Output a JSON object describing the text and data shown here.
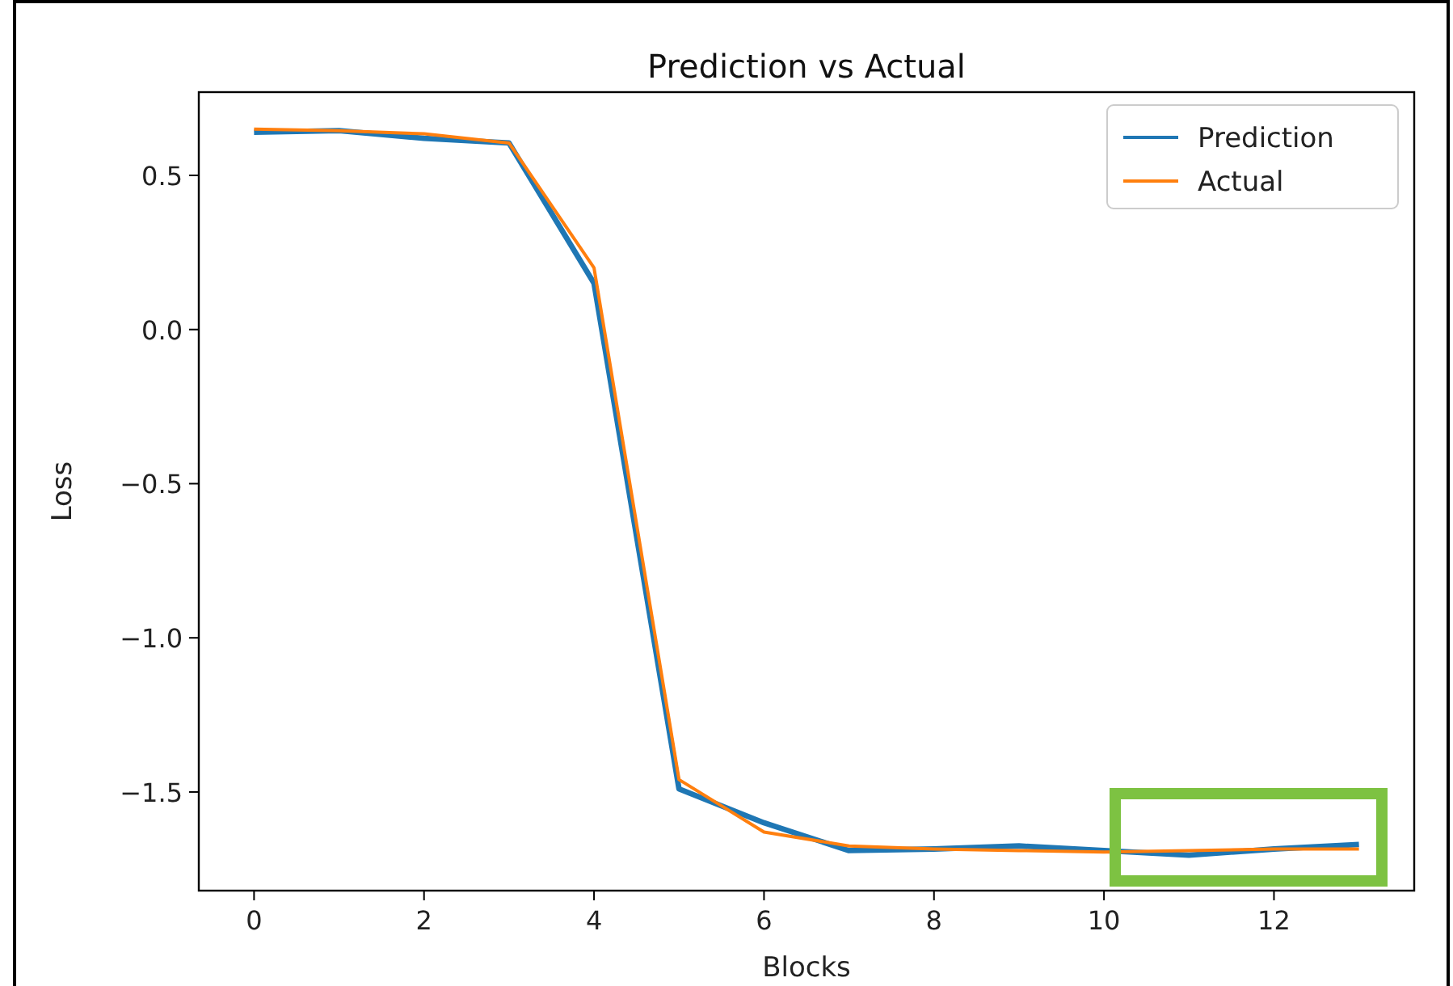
{
  "chart_data": {
    "type": "line",
    "title": "Prediction vs Actual",
    "xlabel": "Blocks",
    "ylabel": "Loss",
    "x": [
      0,
      1,
      2,
      3,
      4,
      5,
      6,
      7,
      8,
      9,
      10,
      11,
      12,
      13
    ],
    "series": [
      {
        "name": "Prediction",
        "color": "#1f77b4",
        "values": [
          0.64,
          0.645,
          0.62,
          0.605,
          0.15,
          -1.49,
          -1.6,
          -1.69,
          -1.685,
          -1.675,
          -1.69,
          -1.705,
          -1.685,
          -1.67
        ]
      },
      {
        "name": "Actual",
        "color": "#ff7f0e",
        "values": [
          0.65,
          0.645,
          0.635,
          0.605,
          0.2,
          -1.46,
          -1.63,
          -1.675,
          -1.685,
          -1.69,
          -1.695,
          -1.69,
          -1.685,
          -1.685
        ]
      }
    ],
    "xlim": [
      -0.65,
      13.65
    ],
    "xticks": [
      0,
      2,
      4,
      6,
      8,
      10,
      12
    ],
    "ylim": [
      -1.82,
      0.77
    ],
    "yticks": [
      {
        "value": -1.5,
        "label": "−1.5"
      },
      {
        "value": -1.0,
        "label": "−1.0"
      },
      {
        "value": -0.5,
        "label": "−0.5"
      },
      {
        "value": 0.0,
        "label": "0.0"
      },
      {
        "value": 0.5,
        "label": "0.5"
      }
    ],
    "grid": false,
    "legend": "top right",
    "marker": "none",
    "line_style": "solid"
  }
}
